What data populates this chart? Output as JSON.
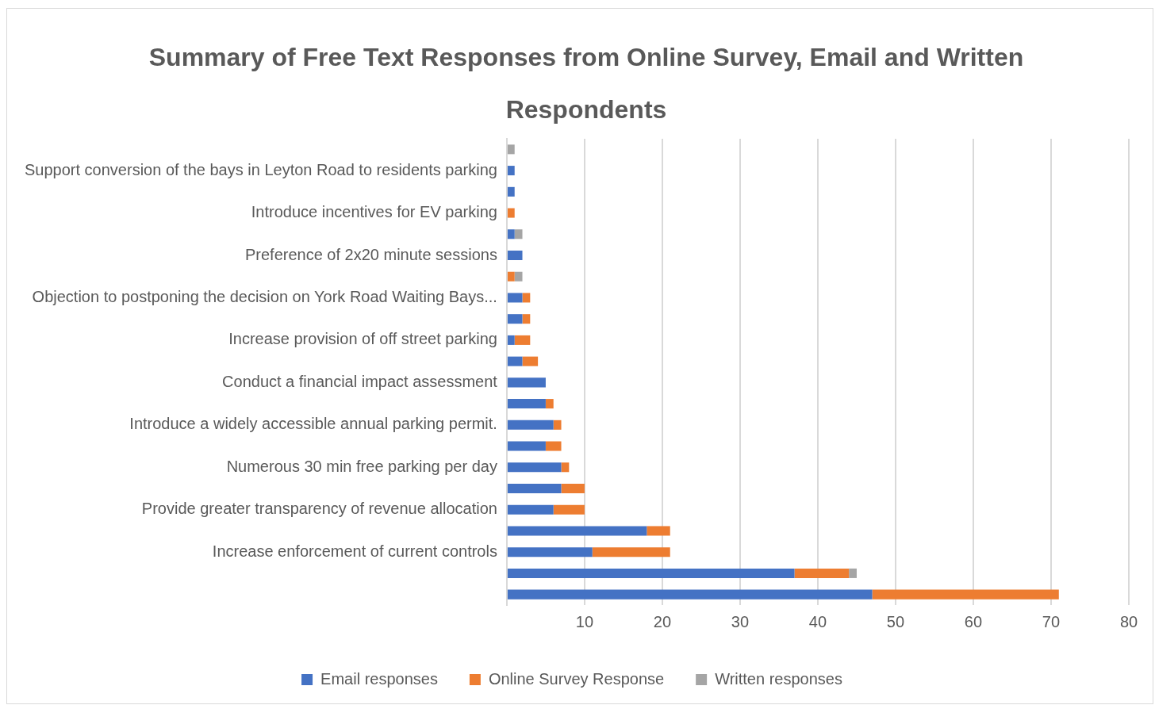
{
  "chart_data": {
    "type": "bar",
    "orientation": "horizontal",
    "stacked": true,
    "title": "Summary of Free Text Responses from Online Survey, Email and Written Respondents",
    "categories": [
      null,
      "Support conversion of the bays in Leyton Road to residents parking",
      null,
      "Introduce incentives for EV parking",
      null,
      "Preference of 2x20 minute sessions",
      null,
      "Objection to postponing the decision on York Road Waiting Bays...",
      null,
      "Increase provision of off street parking",
      null,
      "Conduct a financial impact assessment",
      null,
      "Introduce a widely accessible annual parking permit.",
      null,
      "Numerous 30 min free parking per day",
      null,
      "Provide greater transparency of revenue allocation",
      null,
      "Increase enforcement of current controls",
      null,
      null
    ],
    "series": [
      {
        "name": "Email responses",
        "color": "#4472c4",
        "values": [
          0,
          1,
          1,
          0,
          1,
          2,
          0,
          2,
          2,
          1,
          2,
          5,
          5,
          6,
          5,
          7,
          7,
          6,
          18,
          11,
          37,
          47
        ]
      },
      {
        "name": "Online Survey Response",
        "color": "#ed7d31",
        "values": [
          0,
          0,
          0,
          1,
          0,
          0,
          1,
          1,
          1,
          2,
          2,
          0,
          1,
          1,
          2,
          1,
          3,
          4,
          3,
          10,
          7,
          24
        ]
      },
      {
        "name": "Written responses",
        "color": "#a5a5a5",
        "values": [
          1,
          0,
          0,
          0,
          1,
          0,
          1,
          0,
          0,
          0,
          0,
          0,
          0,
          0,
          0,
          0,
          0,
          0,
          0,
          0,
          1,
          0
        ]
      }
    ],
    "xlim": [
      0,
      80
    ],
    "xticks": [
      {
        "value": 0,
        "label": null
      },
      10,
      20,
      30,
      40,
      50,
      60,
      70,
      80
    ],
    "grid": "x",
    "legend": "bottom"
  }
}
